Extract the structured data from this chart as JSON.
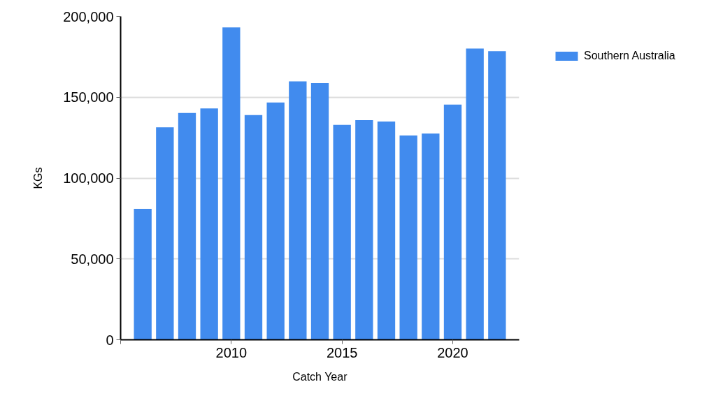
{
  "chart_data": {
    "type": "bar",
    "xlabel": "Catch Year",
    "ylabel": "KGs",
    "x": [
      2006,
      2007,
      2008,
      2009,
      2010,
      2011,
      2012,
      2013,
      2014,
      2015,
      2016,
      2017,
      2018,
      2019,
      2020,
      2021,
      2022
    ],
    "series": [
      {
        "name": "Southern Australia",
        "color": "#418bee",
        "values": [
          81000,
          131400,
          140300,
          143100,
          193200,
          139000,
          146800,
          159800,
          158700,
          132900,
          135800,
          135000,
          126400,
          127500,
          145500,
          180100,
          178500
        ]
      }
    ],
    "xlim": [
      2005,
      2023
    ],
    "xticks": [
      {
        "value": 2005,
        "label": null
      },
      2010,
      2015,
      2020
    ],
    "ylim": [
      0,
      200000
    ],
    "yticks": [
      {
        "value": 0,
        "label": "0"
      },
      {
        "value": 50000,
        "label": "50,000"
      },
      {
        "value": 100000,
        "label": "100,000"
      },
      {
        "value": 150000,
        "label": "150,000"
      },
      {
        "value": 200000,
        "label": "200,000"
      }
    ],
    "grid": "y",
    "legend": "top right"
  }
}
